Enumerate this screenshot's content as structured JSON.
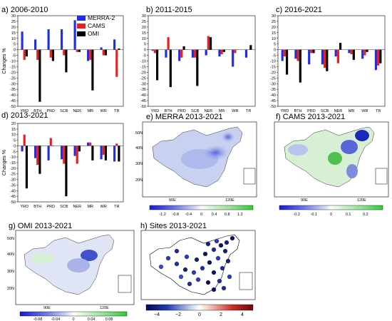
{
  "chart_data": [
    {
      "panel": "a) 2006-2010",
      "type": "bar",
      "categories": [
        "YRD",
        "BTH",
        "PRD",
        "SCB",
        "NER",
        "MR",
        "WR",
        "TR"
      ],
      "ylabel": "Changes %",
      "ylim": [
        -50,
        30
      ],
      "yticks": [
        -50,
        -45,
        -40,
        -35,
        -30,
        -25,
        -20,
        -15,
        -10,
        -5,
        0,
        5,
        10,
        15,
        20,
        25,
        30
      ],
      "legend": {
        "position": "top-right",
        "entries": [
          "MERRA-2",
          "CAMS",
          "OMI"
        ]
      },
      "series": [
        {
          "name": "MERRA-2",
          "color": "#1f2de8",
          "values": [
            16,
            9,
            18,
            18,
            26,
            -10,
            2,
            9
          ]
        },
        {
          "name": "CAMS",
          "color": "#ee1c1c",
          "values": [
            -9,
            -9,
            -7,
            -5,
            -2,
            -9,
            -5,
            -24
          ]
        },
        {
          "name": "OMI",
          "color": "#000000",
          "values": [
            -6,
            -46,
            -10,
            -20,
            -2,
            -36,
            -5,
            1
          ]
        }
      ]
    },
    {
      "panel": "b) 2011-2015",
      "type": "bar",
      "categories": [
        "YRD",
        "BTH",
        "PRD",
        "SCB",
        "NER",
        "MR",
        "WR",
        "TR"
      ],
      "ylim": [
        -50,
        30
      ],
      "yticks": [
        -50,
        -45,
        -40,
        -35,
        -30,
        -25,
        -20,
        -15,
        -10,
        -5,
        0,
        5,
        10,
        15,
        20,
        25,
        30
      ],
      "series": [
        {
          "name": "MERRA-2",
          "values": [
            -1,
            -7,
            -10,
            -7,
            -5,
            -6,
            -15,
            -7
          ]
        },
        {
          "name": "CAMS",
          "values": [
            -3,
            11,
            -7,
            -7,
            12,
            -4,
            -3,
            0
          ]
        },
        {
          "name": "OMI",
          "values": [
            -27,
            -33,
            3,
            -32,
            11,
            -2,
            0,
            4
          ]
        }
      ]
    },
    {
      "panel": "c) 2016-2021",
      "type": "bar",
      "categories": [
        "YRD",
        "BTH",
        "PRD",
        "SCB",
        "NER",
        "MR",
        "WR",
        "TR"
      ],
      "ylim": [
        -50,
        30
      ],
      "yticks": [
        -50,
        -45,
        -40,
        -35,
        -30,
        -25,
        -20,
        -15,
        -10,
        -5,
        0,
        5,
        10,
        15,
        20,
        25,
        30
      ],
      "series": [
        {
          "name": "MERRA-2",
          "values": [
            -10,
            -8,
            -13,
            -13,
            -6,
            -3,
            -8,
            -18
          ]
        },
        {
          "name": "CAMS",
          "values": [
            -6,
            -10,
            -3,
            -16,
            -12,
            -4,
            -5,
            -14
          ]
        },
        {
          "name": "OMI",
          "values": [
            -22,
            -29,
            -3,
            -19,
            6,
            -9,
            -2,
            -12
          ]
        }
      ]
    },
    {
      "panel": "d) 2013-2021",
      "type": "bar",
      "categories": [
        "YRD",
        "BTH",
        "PRD",
        "SCB",
        "NER",
        "MR",
        "WR",
        "TR"
      ],
      "ylabel": "Changes %",
      "ylim": [
        -50,
        20
      ],
      "yticks": [
        -50,
        -45,
        -40,
        -35,
        -30,
        -25,
        -20,
        -15,
        -10,
        -5,
        0,
        5,
        10,
        15,
        20
      ],
      "series": [
        {
          "name": "MERRA-2",
          "values": [
            -5,
            -11,
            -13,
            -12,
            -9,
            3,
            -12,
            -14
          ]
        },
        {
          "name": "CAMS",
          "values": [
            10,
            -17,
            7,
            -16,
            -16,
            3,
            -8,
            2
          ]
        },
        {
          "name": "OMI",
          "values": [
            -38,
            -25,
            0,
            -45,
            -5,
            -13,
            -13,
            -14
          ]
        }
      ]
    }
  ],
  "maps": [
    {
      "title": "e) MERRA 2013-2021",
      "lat_labels": [
        "50N",
        "40N",
        "30N",
        "20N"
      ],
      "lon_labels": [
        "90E",
        "120E"
      ],
      "colorbar_ticks": [
        "-1.2",
        "-0.8",
        "-0.4",
        "0",
        "0.4",
        "0.8",
        "1.2"
      ]
    },
    {
      "title": "f) CAMS 2013-2021",
      "lat_labels": [],
      "lon_labels": [
        "90E",
        "120E"
      ],
      "colorbar_ticks": [
        "-0.2",
        "-0.1",
        "0",
        "0.1",
        "0.2"
      ]
    },
    {
      "title": "g) OMI 2013-2021",
      "lat_labels": [
        "50N",
        "40N",
        "30N",
        "20N"
      ],
      "lon_labels": [
        "90E",
        "120E"
      ],
      "colorbar_ticks": [
        "-0.08",
        "-0.04",
        "0",
        "0.04",
        "0.08"
      ]
    },
    {
      "title": "h) Sites  2013-2021",
      "lat_labels": [],
      "lon_labels": [],
      "colorbar_ticks": [
        "−4",
        "−2",
        "0",
        "2",
        "4"
      ]
    }
  ],
  "colors": {
    "merra": "#1f2de8",
    "cams": "#ee1c1c",
    "omi": "#000000"
  }
}
